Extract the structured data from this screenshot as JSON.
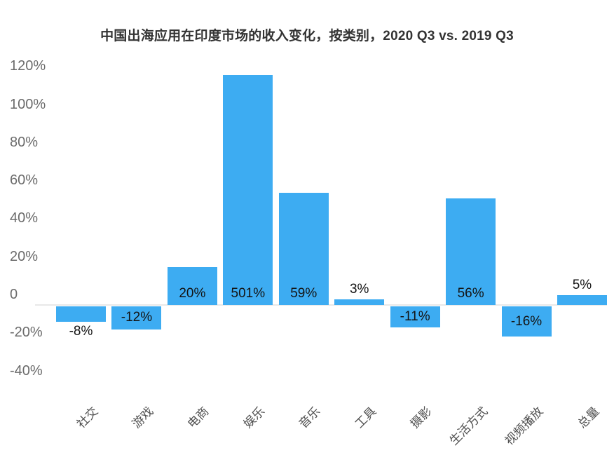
{
  "page": {
    "background": "#ffffff"
  },
  "title": "中国出海应用在印度市场的收入变化，按类别，2020 Q3 vs. 2019 Q3",
  "chart_data": {
    "type": "bar",
    "title": "中国出海应用在印度市场的收入变化，按类别，2020 Q3 vs. 2019 Q3",
    "categories": [
      "社交",
      "游戏",
      "电商",
      "娱乐",
      "音乐",
      "工具",
      "摄影",
      "生活方式",
      "视频播放",
      "总量"
    ],
    "values": [
      -8,
      -12,
      20,
      501,
      59,
      3,
      -11,
      56,
      -16,
      5
    ],
    "value_labels": [
      "-8%",
      "-12%",
      "20%",
      "501%",
      "59%",
      "3%",
      "-11%",
      "56%",
      "-16%",
      "5%"
    ],
    "xlabel": "",
    "ylabel": "",
    "y_ticks": [
      {
        "value": 120,
        "label": "120%"
      },
      {
        "value": 100,
        "label": "100%"
      },
      {
        "value": 80,
        "label": "80%"
      },
      {
        "value": 60,
        "label": "60%"
      },
      {
        "value": 40,
        "label": "40%"
      },
      {
        "value": 20,
        "label": "20%"
      },
      {
        "value": 0,
        "label": "0"
      },
      {
        "value": -20,
        "label": "-20%"
      },
      {
        "value": -40,
        "label": "-40%"
      }
    ],
    "ylim": [
      -40,
      120
    ],
    "bar_clip_max": 120.8,
    "grid": "off",
    "legend": "none"
  },
  "colors": {
    "bar": "#3DACF2",
    "zero_line": "#e8e8e8",
    "title_text": "#333333",
    "y_tick_text": "#6b6b6b",
    "x_label_text": "#4f4f4f",
    "value_label_text": "#141414",
    "background": "#ffffff"
  }
}
